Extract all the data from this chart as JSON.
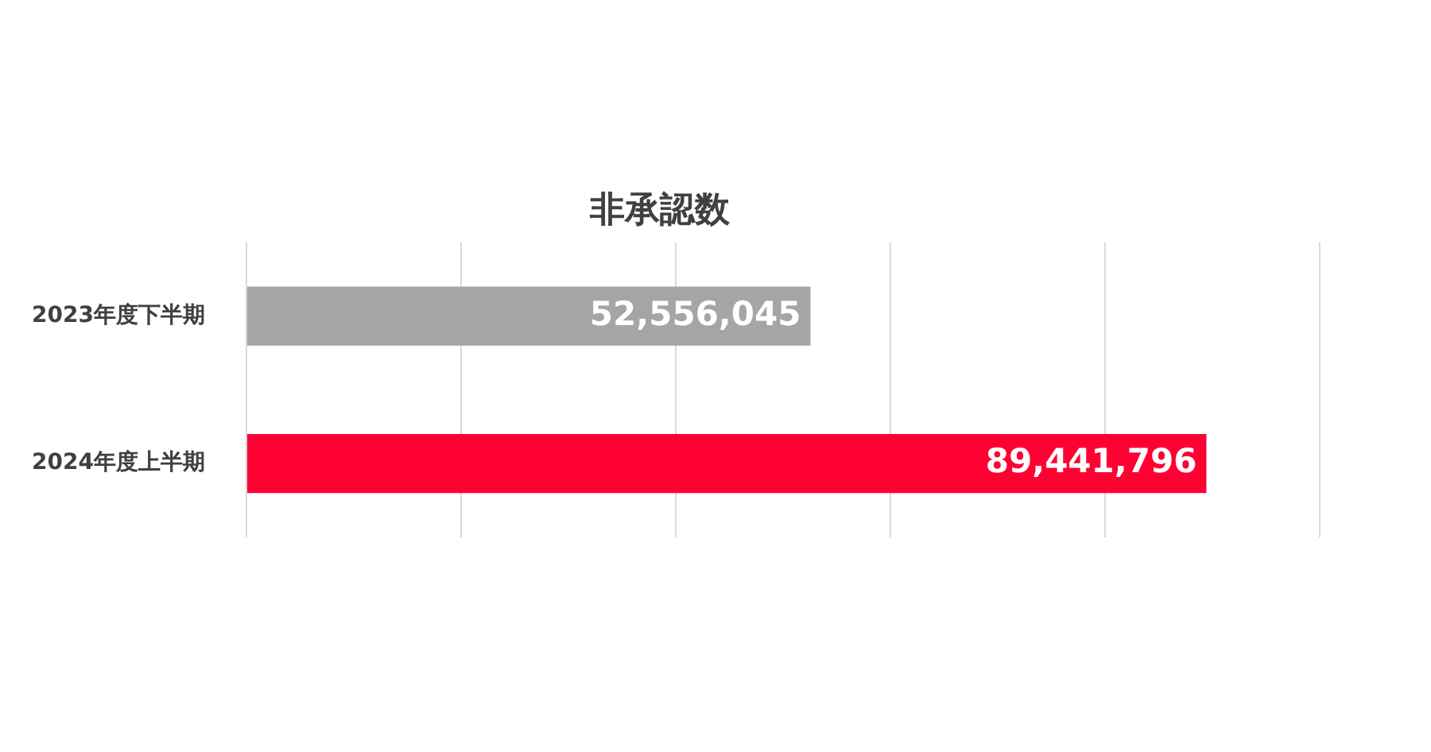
{
  "chart_data": {
    "type": "bar",
    "orientation": "horizontal",
    "title": "非承認数",
    "categories": [
      "2023年度下半期",
      "2024年度上半期"
    ],
    "values": [
      52556045,
      89441796
    ],
    "value_labels": [
      "52,556,045",
      "89,441,796"
    ],
    "colors": [
      "#a5a5a5",
      "#ff0033"
    ],
    "tick_labels": "y",
    "grid": "x",
    "legend": false
  }
}
